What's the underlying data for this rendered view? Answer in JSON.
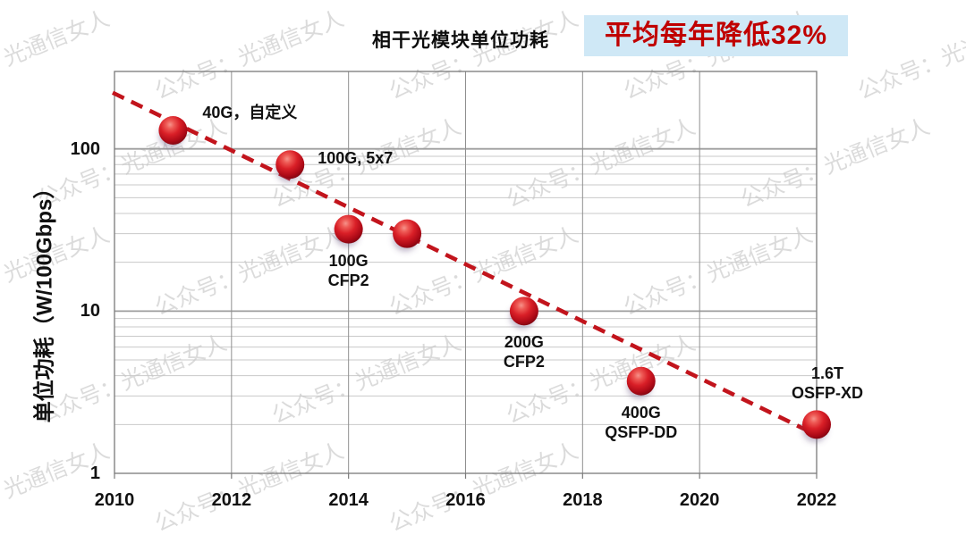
{
  "header": {
    "title": "相干光模块单位功耗",
    "banner": "平均每年降低32%"
  },
  "watermark": {
    "text": "公众号：光通信女人"
  },
  "colors": {
    "banner_bg": "#cfe8f6",
    "banner_text": "#c00000",
    "title_text": "#0d0d0d",
    "point_fill": "#d41b24",
    "trend_line": "#c2141c",
    "grid_minor": "#c9c9c9",
    "grid_major": "#9e9e9e",
    "grid_vertical": "#8f8f8f",
    "plot_border": "#7a7a7a",
    "label_text": "#111111",
    "watermark_text": "rgba(0,0,0,0.14)"
  },
  "chart_data": {
    "type": "scatter",
    "title": "相干光模块单位功耗",
    "annotation": "平均每年降低32%",
    "xlabel": "",
    "ylabel": "单位功耗（W/100Gbps）",
    "x_ticks": [
      2010,
      2012,
      2014,
      2016,
      2018,
      2020,
      2022
    ],
    "y_ticks": [
      1,
      10,
      100
    ],
    "xlim": [
      2010,
      2022
    ],
    "ylim": [
      1,
      300
    ],
    "y_scale": "log",
    "grid": true,
    "points": [
      {
        "year": 2011,
        "value": 130,
        "label": "40G，自定义",
        "placement": "right-up"
      },
      {
        "year": 2013,
        "value": 80,
        "label": "100G, 5x7",
        "placement": "right"
      },
      {
        "year": 2014,
        "value": 32,
        "label": "100G\nCFP2",
        "placement": "below"
      },
      {
        "year": 2015,
        "value": 30,
        "label": "",
        "placement": "none"
      },
      {
        "year": 2017,
        "value": 10,
        "label": "200G\nCFP2",
        "placement": "below"
      },
      {
        "year": 2019,
        "value": 3.7,
        "label": "400G\nQSFP-DD",
        "placement": "below"
      },
      {
        "year": 2022,
        "value": 2,
        "label": "1.6T\nOSFP-XD",
        "placement": "above"
      }
    ],
    "trend": {
      "x1": 2010.0,
      "v1": 222,
      "x2": 2021.92,
      "v2": 1.78
    }
  }
}
